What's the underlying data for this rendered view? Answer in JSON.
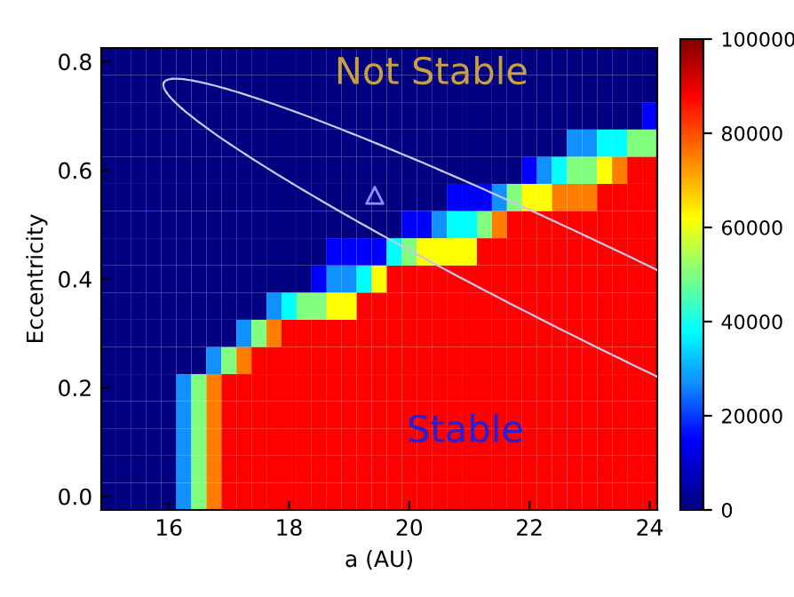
{
  "chart_data": {
    "type": "heatmap",
    "xlabel": "a (AU)",
    "ylabel": "Eccentricity",
    "categories": [
      null,
      null,
      null,
      null,
      "16",
      null,
      null,
      null,
      null,
      null,
      null,
      null,
      "18",
      null,
      null,
      null,
      null,
      null,
      null,
      null,
      "20",
      null,
      null,
      null,
      null,
      null,
      null,
      null,
      "22",
      null,
      null,
      null,
      null,
      null,
      null,
      null,
      "24"
    ],
    "y_categories": [
      "0.8",
      null,
      null,
      null,
      "0.6",
      null,
      null,
      null,
      "0.4",
      null,
      null,
      null,
      "0.2",
      null,
      null,
      null,
      "0.0"
    ],
    "clim": [
      0,
      100000
    ],
    "cticks": [
      0,
      20000,
      40000,
      60000,
      80000,
      100000
    ],
    "cells": [
      [
        0,
        0,
        0,
        0,
        0,
        0,
        0,
        0,
        0,
        0,
        0,
        0,
        0,
        0,
        0,
        0,
        0,
        0,
        0,
        0,
        0,
        0,
        0,
        0,
        0,
        0,
        0,
        0,
        0,
        0,
        0,
        0,
        0,
        0,
        0,
        0,
        0
      ],
      [
        0,
        0,
        0,
        0,
        0,
        0,
        0,
        0,
        0,
        0,
        0,
        0,
        0,
        0,
        0,
        0,
        0,
        0,
        0,
        0,
        0,
        0,
        0,
        0,
        0,
        0,
        0,
        0,
        0,
        0,
        0,
        0,
        0,
        0,
        0,
        0,
        0
      ],
      [
        0,
        0,
        0,
        0,
        0,
        0,
        0,
        0,
        0,
        0,
        0,
        0,
        0,
        0,
        0,
        0,
        0,
        0,
        0,
        0,
        0,
        0,
        0,
        0,
        0,
        0,
        0,
        0,
        0,
        0,
        0,
        0,
        0,
        0,
        0,
        0,
        15000
      ],
      [
        0,
        0,
        0,
        0,
        0,
        0,
        0,
        0,
        0,
        0,
        0,
        0,
        0,
        0,
        0,
        0,
        0,
        0,
        0,
        0,
        0,
        0,
        0,
        0,
        0,
        0,
        0,
        0,
        0,
        0,
        0,
        27000,
        27000,
        38000,
        38000,
        50000,
        50000
      ],
      [
        0,
        0,
        0,
        0,
        0,
        0,
        0,
        0,
        0,
        0,
        0,
        0,
        0,
        0,
        0,
        0,
        0,
        0,
        0,
        0,
        0,
        0,
        0,
        0,
        0,
        0,
        0,
        0,
        15000,
        27000,
        38000,
        50000,
        50000,
        62000,
        75000,
        88000,
        88000
      ],
      [
        0,
        0,
        0,
        0,
        0,
        0,
        0,
        0,
        0,
        0,
        0,
        0,
        0,
        0,
        0,
        0,
        0,
        0,
        0,
        0,
        0,
        0,
        0,
        15000,
        15000,
        15000,
        27000,
        50000,
        62000,
        62000,
        75000,
        75000,
        75000,
        88000,
        88000,
        88000,
        88000
      ],
      [
        0,
        0,
        0,
        0,
        0,
        0,
        0,
        0,
        0,
        0,
        0,
        0,
        0,
        0,
        0,
        0,
        0,
        0,
        0,
        0,
        15000,
        15000,
        27000,
        38000,
        38000,
        50000,
        75000,
        88000,
        88000,
        88000,
        88000,
        88000,
        88000,
        88000,
        88000,
        88000,
        88000
      ],
      [
        0,
        0,
        0,
        0,
        0,
        0,
        0,
        0,
        0,
        0,
        0,
        0,
        0,
        0,
        0,
        15000,
        15000,
        15000,
        15000,
        38000,
        50000,
        62000,
        62000,
        62000,
        62000,
        88000,
        88000,
        88000,
        88000,
        88000,
        88000,
        88000,
        88000,
        88000,
        88000,
        88000,
        88000
      ],
      [
        0,
        0,
        0,
        0,
        0,
        0,
        0,
        0,
        0,
        0,
        0,
        0,
        0,
        0,
        15000,
        27000,
        27000,
        38000,
        62000,
        88000,
        88000,
        88000,
        88000,
        88000,
        88000,
        88000,
        88000,
        88000,
        88000,
        88000,
        88000,
        88000,
        88000,
        88000,
        88000,
        88000,
        88000
      ],
      [
        0,
        0,
        0,
        0,
        0,
        0,
        0,
        0,
        0,
        0,
        0,
        27000,
        38000,
        50000,
        50000,
        62000,
        62000,
        88000,
        88000,
        88000,
        88000,
        88000,
        88000,
        88000,
        88000,
        88000,
        88000,
        88000,
        88000,
        88000,
        88000,
        88000,
        88000,
        88000,
        88000,
        88000,
        88000
      ],
      [
        0,
        0,
        0,
        0,
        0,
        0,
        0,
        0,
        0,
        27000,
        50000,
        75000,
        88000,
        88000,
        88000,
        88000,
        88000,
        88000,
        88000,
        88000,
        88000,
        88000,
        88000,
        88000,
        88000,
        88000,
        88000,
        88000,
        88000,
        88000,
        88000,
        88000,
        88000,
        88000,
        88000,
        88000,
        88000
      ],
      [
        0,
        0,
        0,
        0,
        0,
        0,
        0,
        27000,
        50000,
        75000,
        88000,
        88000,
        88000,
        88000,
        88000,
        88000,
        88000,
        88000,
        88000,
        88000,
        88000,
        88000,
        88000,
        88000,
        88000,
        88000,
        88000,
        88000,
        88000,
        88000,
        88000,
        88000,
        88000,
        88000,
        88000,
        88000,
        88000
      ],
      [
        0,
        0,
        0,
        0,
        0,
        27000,
        50000,
        75000,
        88000,
        88000,
        88000,
        88000,
        88000,
        88000,
        88000,
        88000,
        88000,
        88000,
        88000,
        88000,
        88000,
        88000,
        88000,
        88000,
        88000,
        88000,
        88000,
        88000,
        88000,
        88000,
        88000,
        88000,
        88000,
        88000,
        88000,
        88000,
        88000
      ],
      [
        0,
        0,
        0,
        0,
        0,
        27000,
        50000,
        75000,
        88000,
        88000,
        88000,
        88000,
        88000,
        88000,
        88000,
        88000,
        88000,
        88000,
        88000,
        88000,
        88000,
        88000,
        88000,
        88000,
        88000,
        88000,
        88000,
        88000,
        88000,
        88000,
        88000,
        88000,
        88000,
        88000,
        88000,
        88000,
        88000
      ],
      [
        0,
        0,
        0,
        0,
        0,
        27000,
        50000,
        75000,
        88000,
        88000,
        88000,
        88000,
        88000,
        88000,
        88000,
        88000,
        88000,
        88000,
        88000,
        88000,
        88000,
        88000,
        88000,
        88000,
        88000,
        88000,
        88000,
        88000,
        88000,
        88000,
        88000,
        88000,
        88000,
        88000,
        88000,
        88000,
        88000
      ],
      [
        0,
        0,
        0,
        0,
        0,
        27000,
        50000,
        75000,
        88000,
        88000,
        88000,
        88000,
        88000,
        88000,
        88000,
        88000,
        88000,
        88000,
        88000,
        88000,
        88000,
        88000,
        88000,
        88000,
        88000,
        88000,
        88000,
        88000,
        88000,
        88000,
        88000,
        88000,
        88000,
        88000,
        88000,
        88000,
        88000
      ],
      [
        0,
        0,
        0,
        0,
        0,
        27000,
        50000,
        75000,
        88000,
        88000,
        88000,
        88000,
        88000,
        88000,
        88000,
        88000,
        88000,
        88000,
        88000,
        88000,
        88000,
        88000,
        88000,
        88000,
        88000,
        88000,
        88000,
        88000,
        88000,
        88000,
        88000,
        88000,
        88000,
        88000,
        88000,
        88000,
        88000
      ]
    ],
    "annotations": [
      "Not Stable",
      "Stable"
    ]
  }
}
